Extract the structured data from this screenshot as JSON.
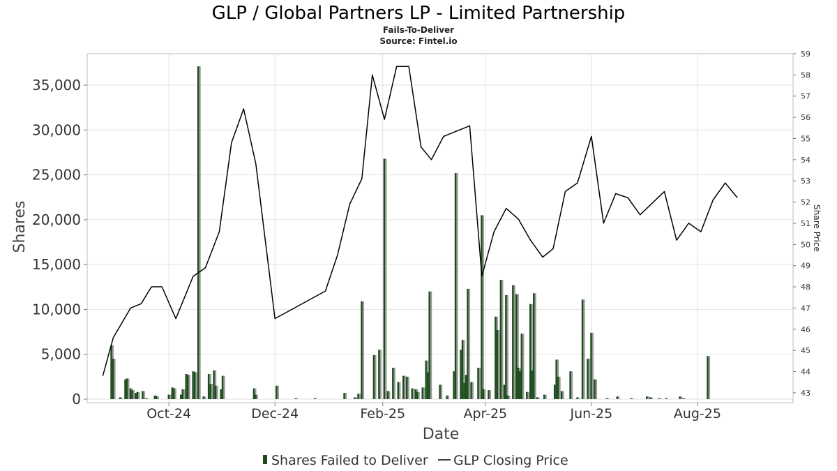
{
  "chart_data": {
    "type": "bar+line",
    "title": "GLP / Global Partners LP - Limited Partnership",
    "subtitle": "Fails-To-Deliver",
    "source": "Source: Fintel.io",
    "xlabel": "Date",
    "ylabel": "Shares",
    "y2label": "Share Price",
    "ylim": [
      0,
      38500
    ],
    "y2lim": [
      42.7,
      59.0
    ],
    "xlim": [
      "2024-08-15",
      "2025-09-25"
    ],
    "yticks": [
      0,
      5000,
      10000,
      15000,
      20000,
      25000,
      30000,
      35000
    ],
    "ytick_labels": [
      "0",
      "5,000",
      "10,000",
      "15,000",
      "20,000",
      "25,000",
      "30,000",
      "35,000"
    ],
    "y2ticks": [
      43,
      44,
      45,
      46,
      47,
      48,
      49,
      50,
      51,
      52,
      53,
      54,
      55,
      56,
      57,
      58,
      59
    ],
    "xticks": [
      "2024-10-01",
      "2024-12-01",
      "2025-02-01",
      "2025-04-01",
      "2025-06-01",
      "2025-08-01"
    ],
    "xtick_labels": [
      "Oct-24",
      "Dec-24",
      "Feb-25",
      "Apr-25",
      "Jun-25",
      "Aug-25"
    ],
    "grid": true,
    "legend_position": "bottom",
    "colors": {
      "bar": "#1b4d1b",
      "bar_shadow": "#9a9a9a",
      "line": "#000000"
    },
    "series": [
      {
        "name": "Shares Failed to Deliver",
        "kind": "bar",
        "axis": "left",
        "points": [
          [
            "2024-08-29",
            6000
          ],
          [
            "2024-08-30",
            4500
          ],
          [
            "2024-09-03",
            200
          ],
          [
            "2024-09-06",
            2200
          ],
          [
            "2024-09-07",
            2300
          ],
          [
            "2024-09-09",
            1200
          ],
          [
            "2024-09-10",
            1000
          ],
          [
            "2024-09-12",
            700
          ],
          [
            "2024-09-13",
            800
          ],
          [
            "2024-09-16",
            900
          ],
          [
            "2024-09-18",
            100
          ],
          [
            "2024-09-23",
            400
          ],
          [
            "2024-09-24",
            300
          ],
          [
            "2024-10-01",
            500
          ],
          [
            "2024-10-03",
            1300
          ],
          [
            "2024-10-04",
            1200
          ],
          [
            "2024-10-08",
            500
          ],
          [
            "2024-10-09",
            1100
          ],
          [
            "2024-10-11",
            2800
          ],
          [
            "2024-10-12",
            2700
          ],
          [
            "2024-10-15",
            3100
          ],
          [
            "2024-10-16",
            3000
          ],
          [
            "2024-10-18",
            37100
          ],
          [
            "2024-10-21",
            300
          ],
          [
            "2024-10-24",
            2800
          ],
          [
            "2024-10-25",
            1700
          ],
          [
            "2024-10-27",
            3200
          ],
          [
            "2024-10-28",
            1500
          ],
          [
            "2024-10-31",
            1100
          ],
          [
            "2024-11-01",
            2600
          ],
          [
            "2024-11-19",
            1200
          ],
          [
            "2024-11-20",
            500
          ],
          [
            "2024-12-02",
            1500
          ],
          [
            "2024-12-13",
            100
          ],
          [
            "2024-12-24",
            100
          ],
          [
            "2025-01-10",
            700
          ],
          [
            "2025-01-16",
            200
          ],
          [
            "2025-01-18",
            600
          ],
          [
            "2025-01-20",
            10900
          ],
          [
            "2025-01-27",
            4900
          ],
          [
            "2025-01-30",
            5500
          ],
          [
            "2025-02-02",
            26800
          ],
          [
            "2025-02-04",
            900
          ],
          [
            "2025-02-07",
            3500
          ],
          [
            "2025-02-10",
            1900
          ],
          [
            "2025-02-13",
            2600
          ],
          [
            "2025-02-15",
            2500
          ],
          [
            "2025-02-18",
            1200
          ],
          [
            "2025-02-20",
            1100
          ],
          [
            "2025-02-21",
            800
          ],
          [
            "2025-02-24",
            1300
          ],
          [
            "2025-02-26",
            4300
          ],
          [
            "2025-02-27",
            3000
          ],
          [
            "2025-02-28",
            12000
          ],
          [
            "2025-03-06",
            1600
          ],
          [
            "2025-03-10",
            400
          ],
          [
            "2025-03-14",
            3100
          ],
          [
            "2025-03-15",
            25200
          ],
          [
            "2025-03-18",
            5500
          ],
          [
            "2025-03-19",
            6600
          ],
          [
            "2025-03-20",
            1800
          ],
          [
            "2025-03-21",
            2700
          ],
          [
            "2025-03-22",
            12300
          ],
          [
            "2025-03-24",
            1900
          ],
          [
            "2025-03-28",
            3500
          ],
          [
            "2025-03-30",
            20500
          ],
          [
            "2025-03-31",
            1100
          ],
          [
            "2025-04-03",
            1000
          ],
          [
            "2025-04-07",
            9200
          ],
          [
            "2025-04-08",
            7700
          ],
          [
            "2025-04-10",
            13300
          ],
          [
            "2025-04-12",
            1600
          ],
          [
            "2025-04-13",
            11600
          ],
          [
            "2025-04-14",
            400
          ],
          [
            "2025-04-17",
            12700
          ],
          [
            "2025-04-19",
            11700
          ],
          [
            "2025-04-20",
            3500
          ],
          [
            "2025-04-21",
            3100
          ],
          [
            "2025-04-22",
            7300
          ],
          [
            "2025-04-25",
            800
          ],
          [
            "2025-04-27",
            10600
          ],
          [
            "2025-04-28",
            3200
          ],
          [
            "2025-04-29",
            11800
          ],
          [
            "2025-05-01",
            200
          ],
          [
            "2025-05-05",
            500
          ],
          [
            "2025-05-11",
            1600
          ],
          [
            "2025-05-12",
            4400
          ],
          [
            "2025-05-13",
            2500
          ],
          [
            "2025-05-15",
            900
          ],
          [
            "2025-05-20",
            3100
          ],
          [
            "2025-05-24",
            200
          ],
          [
            "2025-05-27",
            11100
          ],
          [
            "2025-05-30",
            4500
          ],
          [
            "2025-06-01",
            7400
          ],
          [
            "2025-06-03",
            2200
          ],
          [
            "2025-06-10",
            100
          ],
          [
            "2025-06-16",
            300
          ],
          [
            "2025-06-24",
            100
          ],
          [
            "2025-07-03",
            300
          ],
          [
            "2025-07-05",
            200
          ],
          [
            "2025-07-10",
            100
          ],
          [
            "2025-07-14",
            100
          ],
          [
            "2025-07-22",
            300
          ],
          [
            "2025-07-24",
            100
          ],
          [
            "2025-08-07",
            4800
          ]
        ]
      },
      {
        "name": "GLP Closing Price",
        "kind": "line",
        "axis": "right",
        "points": [
          [
            "2024-08-24",
            43.8
          ],
          [
            "2024-08-30",
            45.6
          ],
          [
            "2024-09-09",
            47.0
          ],
          [
            "2024-09-15",
            47.2
          ],
          [
            "2024-09-21",
            48.0
          ],
          [
            "2024-09-27",
            48.0
          ],
          [
            "2024-10-05",
            46.5
          ],
          [
            "2024-10-15",
            48.5
          ],
          [
            "2024-10-22",
            48.9
          ],
          [
            "2024-10-30",
            50.6
          ],
          [
            "2024-11-06",
            54.8
          ],
          [
            "2024-11-13",
            56.4
          ],
          [
            "2024-11-20",
            53.8
          ],
          [
            "2024-12-01",
            46.5
          ],
          [
            "2024-12-30",
            47.8
          ],
          [
            "2025-01-06",
            49.5
          ],
          [
            "2025-01-13",
            51.9
          ],
          [
            "2025-01-20",
            53.1
          ],
          [
            "2025-01-26",
            58.0
          ],
          [
            "2025-02-02",
            55.9
          ],
          [
            "2025-02-09",
            58.4
          ],
          [
            "2025-02-16",
            58.4
          ],
          [
            "2025-02-23",
            54.6
          ],
          [
            "2025-03-01",
            54.0
          ],
          [
            "2025-03-08",
            55.1
          ],
          [
            "2025-03-23",
            55.6
          ],
          [
            "2025-03-30",
            48.5
          ],
          [
            "2025-04-06",
            50.6
          ],
          [
            "2025-04-13",
            51.7
          ],
          [
            "2025-04-20",
            51.2
          ],
          [
            "2025-04-27",
            50.2
          ],
          [
            "2025-05-04",
            49.4
          ],
          [
            "2025-05-10",
            49.8
          ],
          [
            "2025-05-17",
            52.5
          ],
          [
            "2025-05-24",
            52.9
          ],
          [
            "2025-06-01",
            55.1
          ],
          [
            "2025-06-08",
            51.0
          ],
          [
            "2025-06-15",
            52.4
          ],
          [
            "2025-06-22",
            52.2
          ],
          [
            "2025-06-29",
            51.4
          ],
          [
            "2025-07-13",
            52.5
          ],
          [
            "2025-07-20",
            50.2
          ],
          [
            "2025-07-27",
            51.0
          ],
          [
            "2025-08-03",
            50.6
          ],
          [
            "2025-08-10",
            52.1
          ],
          [
            "2025-08-17",
            52.9
          ],
          [
            "2025-08-24",
            52.2
          ]
        ]
      }
    ]
  }
}
